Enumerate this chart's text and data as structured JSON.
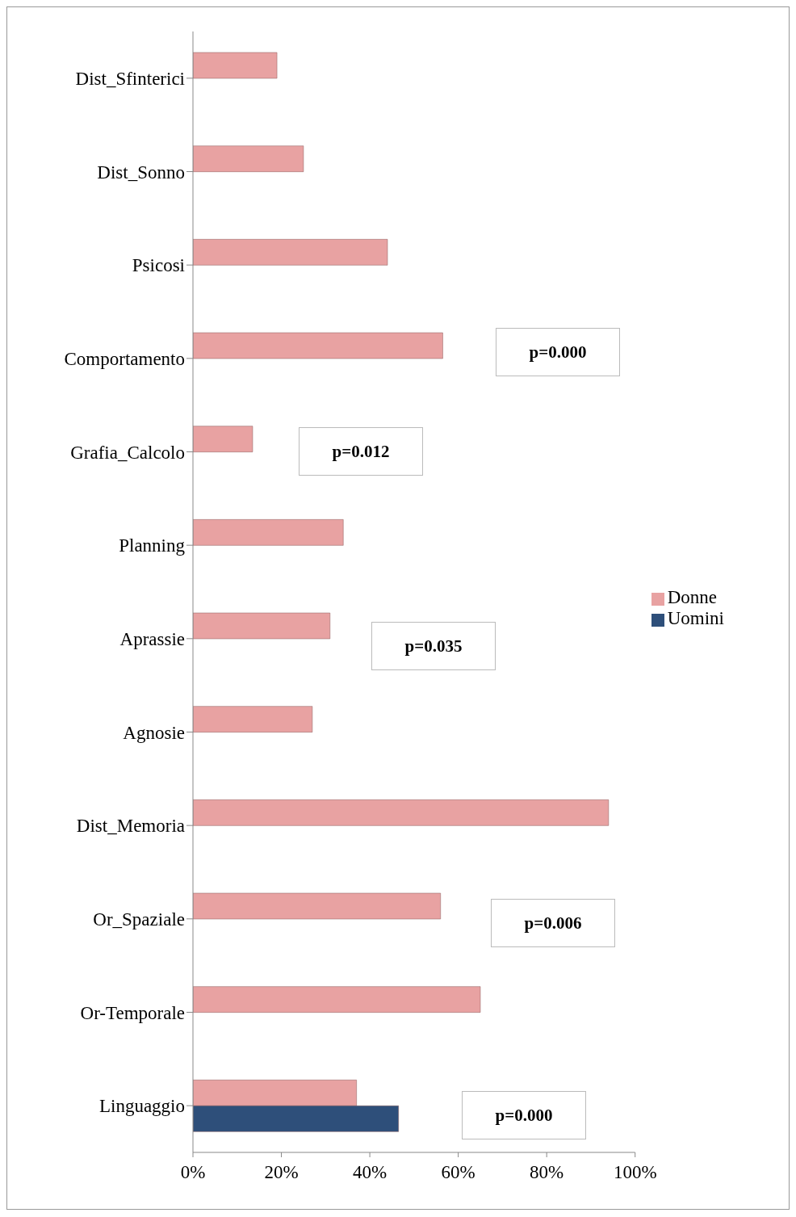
{
  "chart_data": {
    "type": "bar",
    "orientation": "horizontal",
    "categories": [
      "Dist_Sfinterici",
      "Dist_Sonno",
      "Psicosi",
      "Comportamento",
      "Grafia_Calcolo",
      "Planning",
      "Aprassie",
      "Agnosie",
      "Dist_Memoria",
      "Or_Spaziale",
      "Or-Temporale",
      "Linguaggio"
    ],
    "series": [
      {
        "name": "Donne",
        "color": "#e8a2a2",
        "values": [
          19,
          25,
          44,
          56.5,
          13.5,
          34,
          31,
          27,
          94,
          56,
          65,
          37
        ]
      },
      {
        "name": "Uomini",
        "color": "#2e4f7a",
        "values": [
          null,
          null,
          null,
          null,
          null,
          null,
          null,
          null,
          null,
          null,
          null,
          46.5
        ]
      }
    ],
    "xlim": [
      0,
      100
    ],
    "xticks": [
      {
        "value": 0,
        "label": "0%"
      },
      {
        "value": 20,
        "label": "20%"
      },
      {
        "value": 40,
        "label": "40%"
      },
      {
        "value": 60,
        "label": "60%"
      },
      {
        "value": 80,
        "label": "80%"
      },
      {
        "value": 100,
        "label": "100%"
      }
    ],
    "grid": false,
    "legend": "right",
    "annotations": [
      "p=0.000",
      "p=0.012",
      "p=0.035",
      "p=0.006",
      "p=0.000"
    ]
  }
}
